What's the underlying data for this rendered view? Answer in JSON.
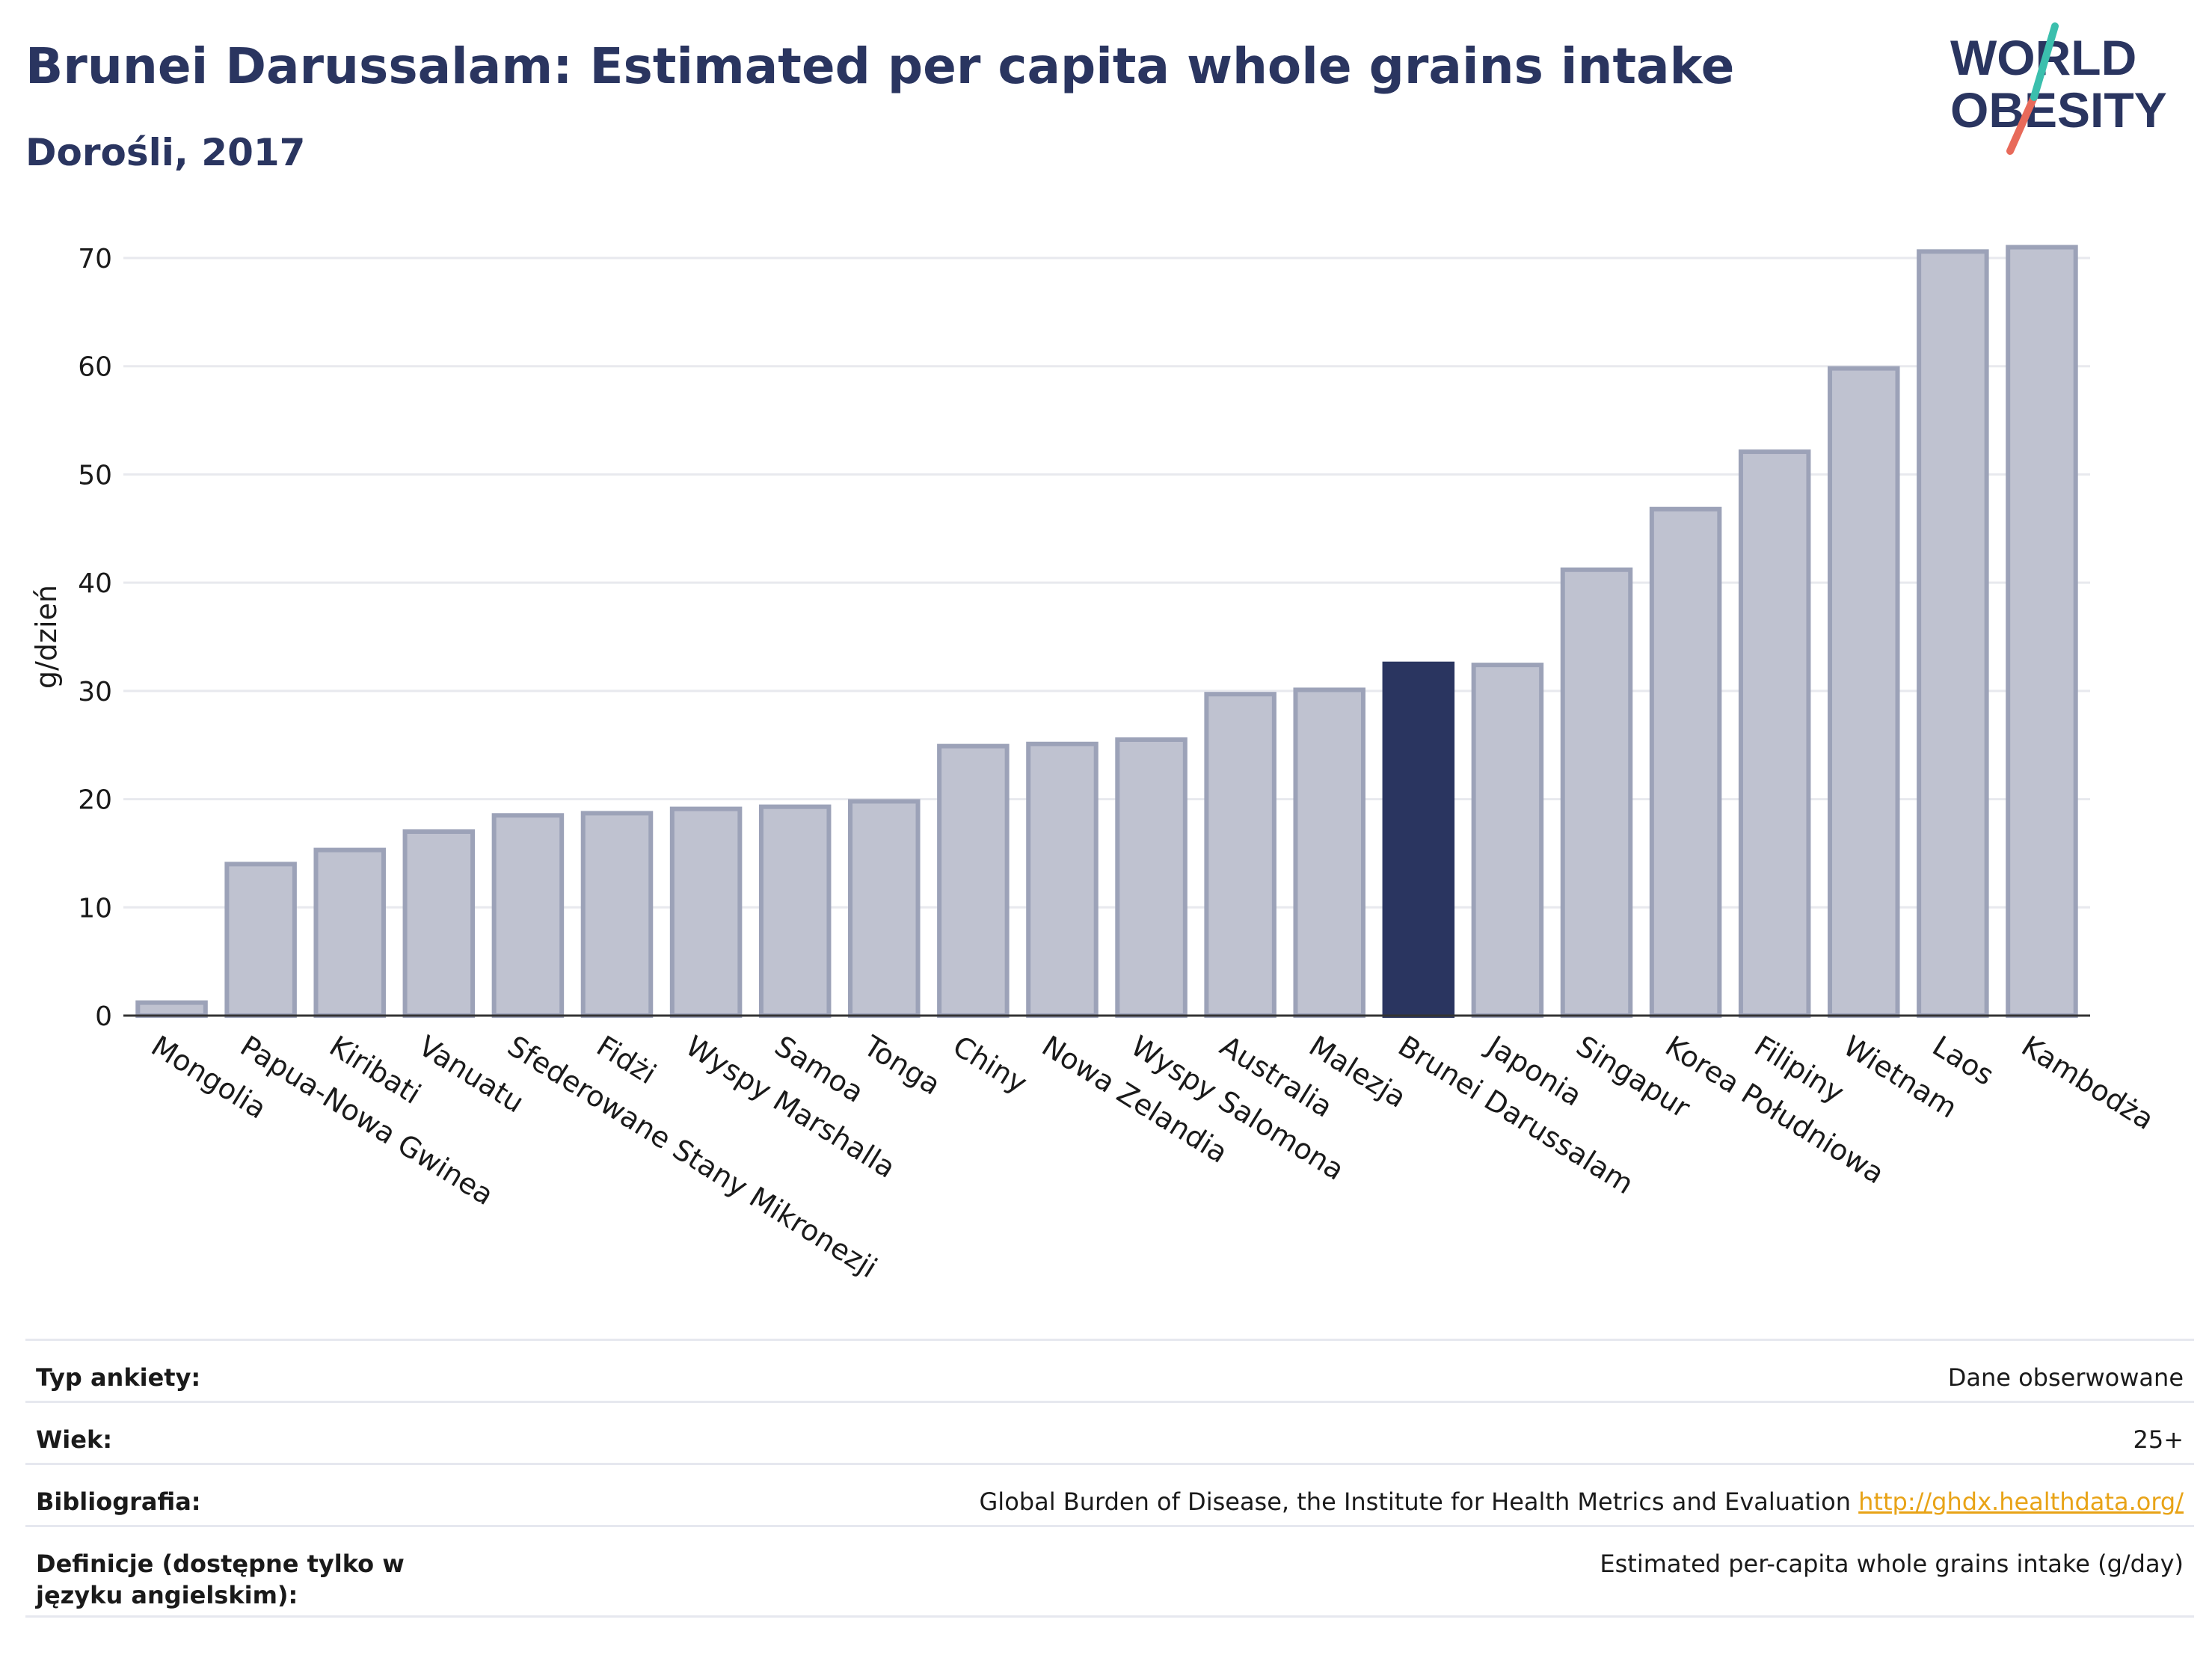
{
  "title": "Brunei Darussalam: Estimated per capita whole grains intake",
  "subtitle": "Dorośli, 2017",
  "logo": {
    "line1": "WORLD",
    "line2": "OBESITY"
  },
  "chart_data": {
    "type": "bar",
    "ylabel": "g/dzień",
    "xlabel": "",
    "ylim": [
      0,
      75
    ],
    "yticks": [
      0,
      10,
      20,
      30,
      40,
      50,
      60,
      70
    ],
    "grid": true,
    "highlight": "Brunei Darussalam",
    "colors": {
      "bar": "#bfc2d0",
      "bar_edge": "#9ca2b8",
      "highlight": "#2a3560"
    },
    "categories": [
      "Mongolia",
      "Papua-Nowa Gwinea",
      "Kiribati",
      "Vanuatu",
      "Sfederowane Stany Mikronezji",
      "Fidżi",
      "Wyspy Marshalla",
      "Samoa",
      "Tonga",
      "Chiny",
      "Nowa Zelandia",
      "Wyspy Salomona",
      "Australia",
      "Malezja",
      "Brunei Darussalam",
      "Japonia",
      "Singapur",
      "Korea Południowa",
      "Filipiny",
      "Wietnam",
      "Laos",
      "Kambodża"
    ],
    "values": [
      1.2,
      14.0,
      15.3,
      17.0,
      18.5,
      18.7,
      19.1,
      19.3,
      19.8,
      24.9,
      25.1,
      25.5,
      29.7,
      30.1,
      32.5,
      32.4,
      41.2,
      46.8,
      52.1,
      59.8,
      70.6,
      71.0
    ]
  },
  "info": [
    {
      "key": "Typ ankiety:",
      "value": "Dane obserwowane"
    },
    {
      "key": "Wiek:",
      "value": "25+"
    },
    {
      "key": "Bibliografia:",
      "value": "Global Burden of Disease, the Institute for Health Metrics and Evaluation",
      "link": "http://ghdx.healthdata.org/"
    },
    {
      "key": "Definicje (dostępne tylko w języku angielskim):",
      "value": "Estimated per-capita whole grains intake (g/day)"
    }
  ]
}
